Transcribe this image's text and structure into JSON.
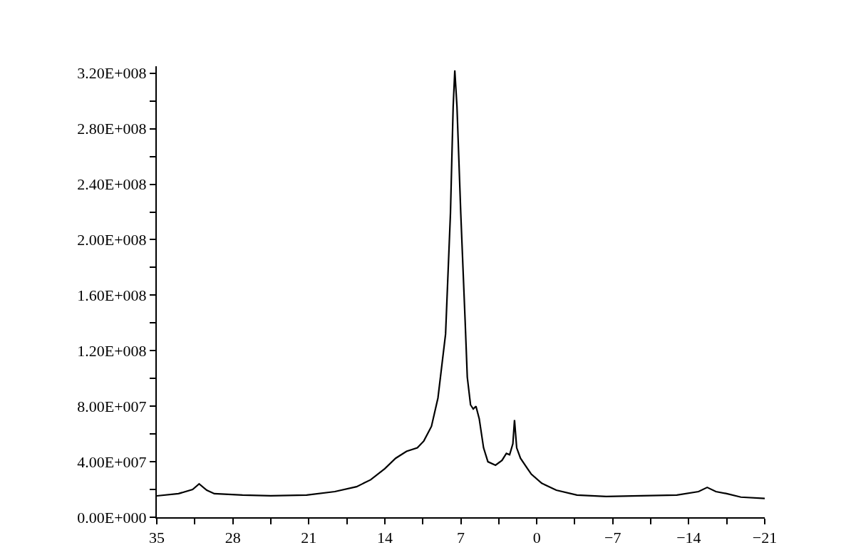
{
  "chart_data": {
    "type": "line",
    "color": "#000000",
    "marker": "none",
    "line_style": "solid",
    "x": [
      35,
      33.0,
      31.7,
      31.1,
      30.4,
      29.7,
      27.1,
      24.5,
      21.2,
      18.6,
      16.6,
      15.3,
      14.0,
      13.0,
      12.0,
      11.0,
      10.4,
      9.7,
      9.1,
      8.4,
      7.95,
      7.7,
      7.55,
      7.35,
      7.0,
      6.6,
      6.4,
      6.1,
      5.85,
      5.6,
      5.3,
      4.9,
      4.5,
      3.8,
      3.2,
      2.8,
      2.5,
      2.2,
      2.05,
      1.85,
      1.5,
      0.85,
      0.5,
      -0.46,
      -1.8,
      -3.7,
      -6.4,
      -9.6,
      -12.9,
      -14.9,
      -15.7,
      -16.5,
      -17.5,
      -18.8,
      -21
    ],
    "values": [
      15400000.0,
      17000000.0,
      20000000.0,
      24000000.0,
      19500000.0,
      17000000.0,
      16000000.0,
      15500000.0,
      16000000.0,
      18500000.0,
      22000000.0,
      27000000.0,
      35000000.0,
      42500000.0,
      47500000.0,
      50000000.0,
      55000000.0,
      65500000.0,
      86000000.0,
      132000000.0,
      219000000.0,
      296000000.0,
      322000000.0,
      296000000.0,
      219000000.0,
      142000000.0,
      101000000.0,
      81000000.0,
      78000000.0,
      80000000.0,
      71000000.0,
      50000000.0,
      40000000.0,
      37500000.0,
      41000000.0,
      46000000.0,
      45000000.0,
      53000000.0,
      70000000.0,
      50000000.0,
      42500000.0,
      35000000.0,
      31000000.0,
      24500000.0,
      19500000.0,
      16000000.0,
      15000000.0,
      15500000.0,
      16000000.0,
      18500000.0,
      21500000.0,
      18500000.0,
      17000000.0,
      14500000.0,
      13500000.0
    ],
    "xlim": [
      35,
      -21
    ],
    "xticks": [
      35,
      {
        "value": 31.5,
        "label": null
      },
      28,
      {
        "value": 24.5,
        "label": null
      },
      21,
      {
        "value": 17.5,
        "label": null
      },
      14,
      {
        "value": 10.5,
        "label": null
      },
      7,
      {
        "value": 3.5,
        "label": null
      },
      0,
      {
        "value": -3.5,
        "label": null
      },
      {
        "value": -7,
        "label": "−7"
      },
      {
        "value": -10.5,
        "label": null
      },
      {
        "value": -14,
        "label": "−14"
      },
      {
        "value": -17.5,
        "label": null
      },
      {
        "value": -21,
        "label": "−21"
      }
    ],
    "ylim": [
      0,
      325000000.0
    ],
    "yticks": [
      {
        "value": 0,
        "label": "0.00E+000"
      },
      {
        "value": 20000000.0,
        "label": null
      },
      {
        "value": 40000000.0,
        "label": "4.00E+007"
      },
      {
        "value": 60000000.0,
        "label": null
      },
      {
        "value": 80000000.0,
        "label": "8.00E+007"
      },
      {
        "value": 100000000.0,
        "label": null
      },
      {
        "value": 120000000.0,
        "label": "1.20E+008"
      },
      {
        "value": 140000000.0,
        "label": null
      },
      {
        "value": 160000000.0,
        "label": "1.60E+008"
      },
      {
        "value": 180000000.0,
        "label": null
      },
      {
        "value": 200000000.0,
        "label": "2.00E+008"
      },
      {
        "value": 220000000.0,
        "label": null
      },
      {
        "value": 240000000.0,
        "label": "2.40E+008"
      },
      {
        "value": 260000000.0,
        "label": null
      },
      {
        "value": 280000000.0,
        "label": "2.80E+008"
      },
      {
        "value": 300000000.0,
        "label": null
      },
      {
        "value": 320000000.0,
        "label": "3.20E+008"
      }
    ]
  }
}
